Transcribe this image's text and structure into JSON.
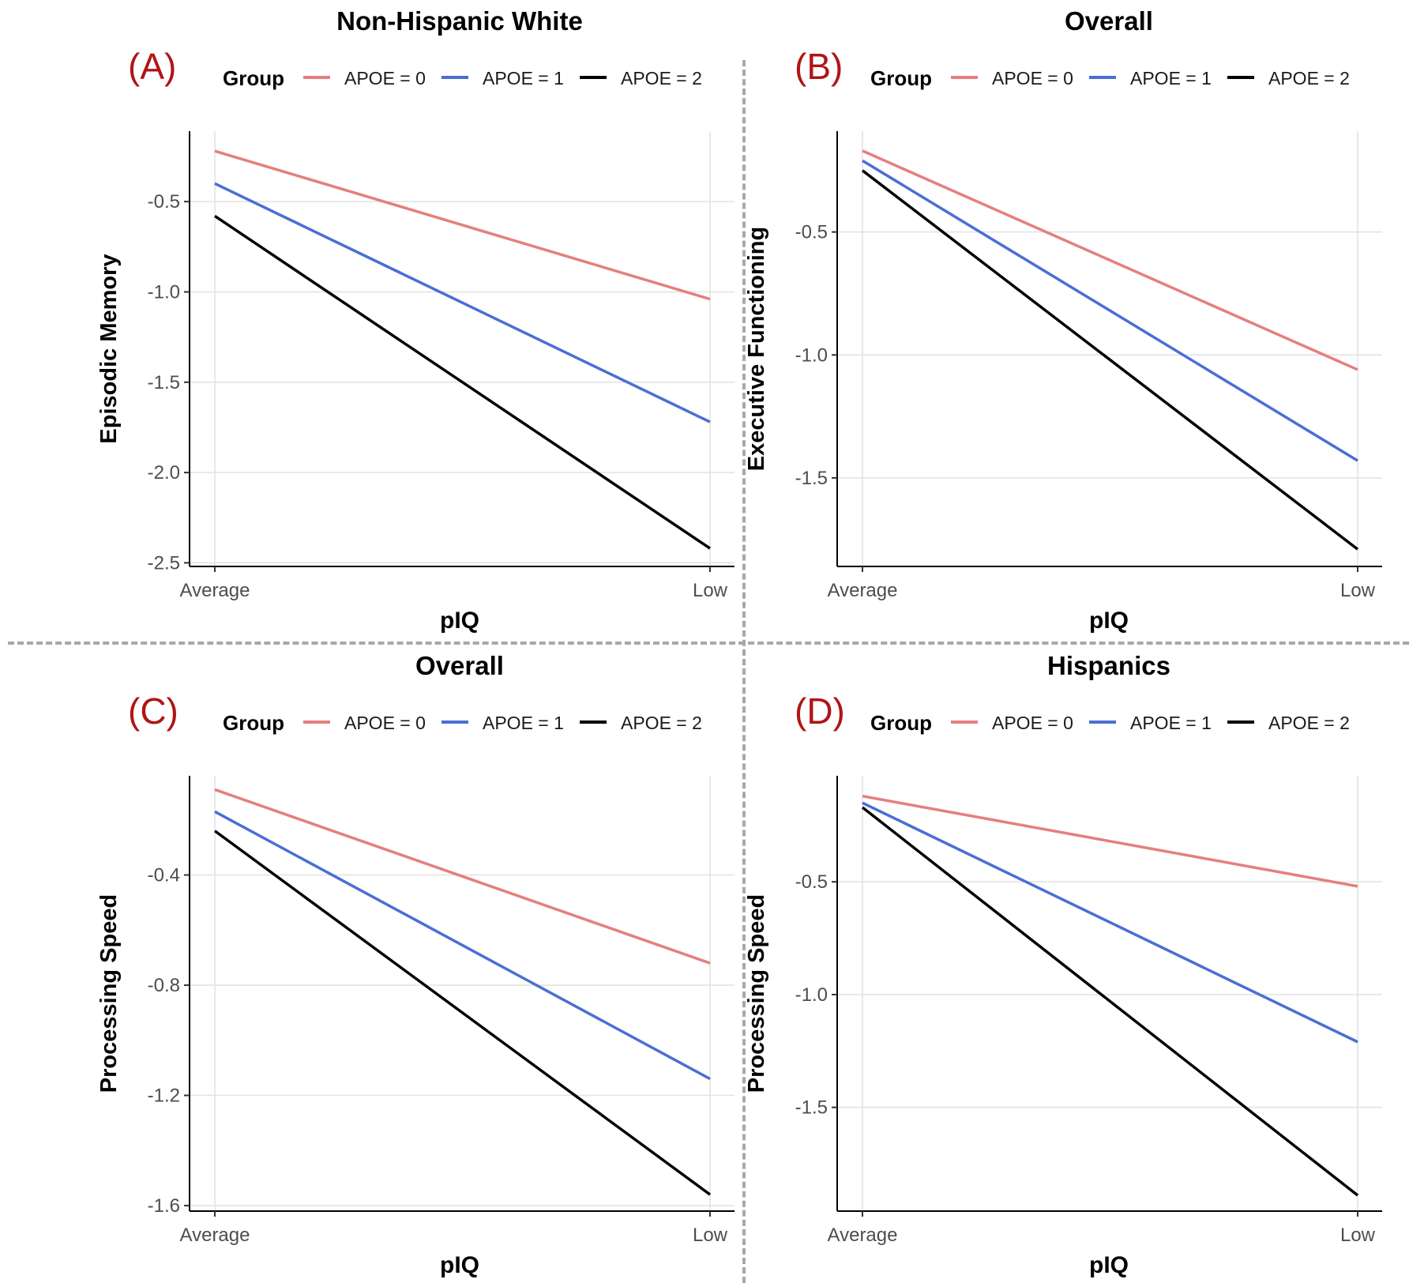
{
  "chart_data": [
    {
      "type": "line",
      "panel_label": "(A)",
      "title": "Non-Hispanic White",
      "xlabel": "pIQ",
      "ylabel": "Episodic Memory",
      "categories": [
        "Average",
        "Low"
      ],
      "yticks": [
        -0.5,
        -1.0,
        -1.5,
        -2.0,
        -2.5
      ],
      "ytick_labels": [
        "-0.5",
        "-1.0",
        "-1.5",
        "-2.0",
        "-2.5"
      ],
      "ylim": [
        -2.52,
        -0.11
      ],
      "legend_title": "Group",
      "legend_position": "top",
      "grid": true,
      "series": [
        {
          "name": "APOE = 0",
          "color": "#e57f7f",
          "values": [
            -0.22,
            -1.04
          ]
        },
        {
          "name": "APOE = 1",
          "color": "#4a6fd4",
          "values": [
            -0.4,
            -1.72
          ]
        },
        {
          "name": "APOE = 2",
          "color": "#000000",
          "values": [
            -0.58,
            -2.42
          ]
        }
      ]
    },
    {
      "type": "line",
      "panel_label": "(B)",
      "title": "Overall",
      "xlabel": "pIQ",
      "ylabel": "Executive Functioning",
      "categories": [
        "Average",
        "Low"
      ],
      "yticks": [
        -0.5,
        -1.0,
        -1.5
      ],
      "ytick_labels": [
        "-0.5",
        "-1.0",
        "-1.5"
      ],
      "ylim": [
        -1.86,
        -0.09
      ],
      "legend_title": "Group",
      "legend_position": "top",
      "grid": true,
      "series": [
        {
          "name": "APOE = 0",
          "color": "#e57f7f",
          "values": [
            -0.17,
            -1.06
          ]
        },
        {
          "name": "APOE = 1",
          "color": "#4a6fd4",
          "values": [
            -0.21,
            -1.43
          ]
        },
        {
          "name": "APOE = 2",
          "color": "#000000",
          "values": [
            -0.25,
            -1.79
          ]
        }
      ]
    },
    {
      "type": "line",
      "panel_label": "(C)",
      "title": "Overall",
      "xlabel": "pIQ",
      "ylabel": "Processing Speed",
      "categories": [
        "Average",
        "Low"
      ],
      "yticks": [
        -0.4,
        -0.8,
        -1.2,
        -1.6
      ],
      "ytick_labels": [
        "-0.4",
        "-0.8",
        "-1.2",
        "-1.6"
      ],
      "ylim": [
        -1.62,
        -0.04
      ],
      "legend_title": "Group",
      "legend_position": "top",
      "grid": true,
      "series": [
        {
          "name": "APOE = 0",
          "color": "#e57f7f",
          "values": [
            -0.09,
            -0.72
          ]
        },
        {
          "name": "APOE = 1",
          "color": "#4a6fd4",
          "values": [
            -0.17,
            -1.14
          ]
        },
        {
          "name": "APOE = 2",
          "color": "#000000",
          "values": [
            -0.24,
            -1.56
          ]
        }
      ]
    },
    {
      "type": "line",
      "panel_label": "(D)",
      "title": "Hispanics",
      "xlabel": "pIQ",
      "ylabel": "Processing Speed",
      "categories": [
        "Average",
        "Low"
      ],
      "yticks": [
        -0.5,
        -1.0,
        -1.5
      ],
      "ytick_labels": [
        "-0.5",
        "-1.0",
        "-1.5"
      ],
      "ylim": [
        -1.96,
        -0.03
      ],
      "legend_title": "Group",
      "legend_position": "top",
      "grid": true,
      "series": [
        {
          "name": "APOE = 0",
          "color": "#e57f7f",
          "values": [
            -0.12,
            -0.52
          ]
        },
        {
          "name": "APOE = 1",
          "color": "#4a6fd4",
          "values": [
            -0.15,
            -1.21
          ]
        },
        {
          "name": "APOE = 2",
          "color": "#000000",
          "values": [
            -0.17,
            -1.89
          ]
        }
      ]
    }
  ]
}
